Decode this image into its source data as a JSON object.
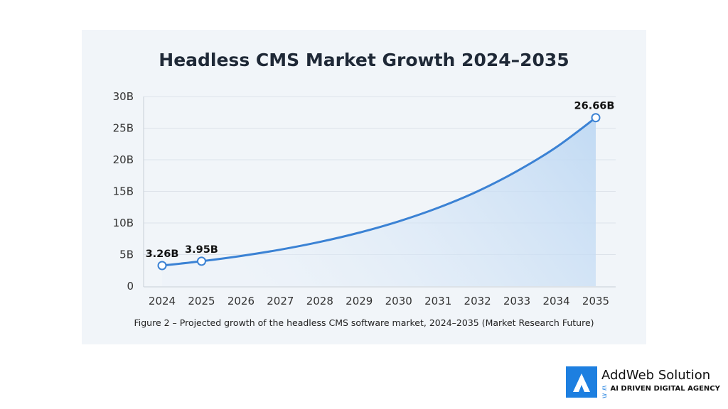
{
  "chart_data": {
    "type": "area",
    "title": "Headless CMS Market Growth 2024–2035",
    "caption": "Figure 2 – Projected growth of the headless CMS software market, 2024–2035 (Market Research Future)",
    "categories": [
      "2024",
      "2025",
      "2026",
      "2027",
      "2028",
      "2029",
      "2030",
      "2031",
      "2032",
      "2033",
      "2034",
      "2035"
    ],
    "values": [
      3.26,
      3.95,
      4.78,
      5.78,
      7.0,
      8.47,
      10.25,
      12.4,
      15.0,
      18.2,
      22.0,
      26.66
    ],
    "data_labels": [
      {
        "index": 0,
        "text": "3.26B"
      },
      {
        "index": 1,
        "text": "3.95B"
      },
      {
        "index": 11,
        "text": "26.66B"
      }
    ],
    "yticks": [
      {
        "value": 0,
        "label": "0"
      },
      {
        "value": 5,
        "label": "5B"
      },
      {
        "value": 10,
        "label": "10B"
      },
      {
        "value": 15,
        "label": "15B"
      },
      {
        "value": 20,
        "label": "20B"
      },
      {
        "value": 25,
        "label": "25B"
      },
      {
        "value": 30,
        "label": "30B"
      }
    ],
    "ylim": [
      0,
      30
    ],
    "grid": true,
    "colors": {
      "line": "#3b82d4",
      "fill": "#bcd7f3"
    }
  },
  "branding": {
    "name": "AddWeb Solution",
    "tagline": "AI DRIVEN DIGITAL AGENCY",
    "color": "#1d7fe0"
  }
}
